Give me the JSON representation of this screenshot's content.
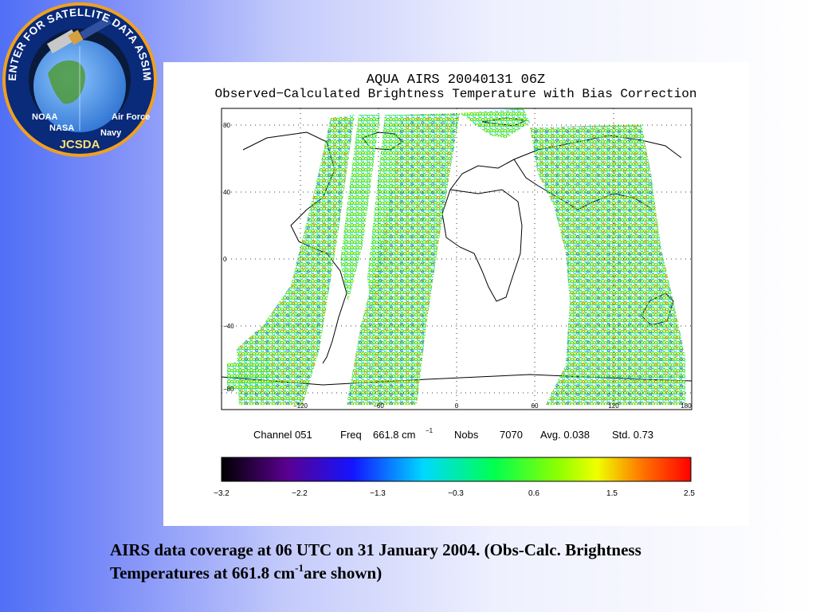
{
  "logo": {
    "ring_text": "JOINT CENTER FOR SATELLITE DATA ASSIMILATION",
    "bottom_text": [
      "NOAA",
      "NASA",
      "JCSDA",
      "Navy",
      "Air Force"
    ]
  },
  "plot": {
    "title_line1": "AQUA AIRS 20040131 06Z",
    "title_line2": "Observed−Calculated Brightness Temperature with Bias Correction",
    "lat_ticks": [
      "80",
      "40",
      "0",
      "−40",
      "−80"
    ],
    "lon_ticks": [
      "−120",
      "−60",
      "0",
      "60",
      "120",
      "180"
    ],
    "info": {
      "channel": "Channel 051",
      "freq_label": "Freq",
      "freq_value": "661.8 cm",
      "freq_exp": "−1",
      "nobs_label": "Nobs",
      "nobs_value": "7070",
      "avg": "Avg. 0.038",
      "std": "Std. 0.73"
    },
    "colorbar": {
      "ticks": [
        "−3.2",
        "−2.2",
        "−1.3",
        "−0.3",
        "0.6",
        "1.5",
        "2.5"
      ],
      "colors": [
        "#000000",
        "#5a0090",
        "#1414ff",
        "#00d8ff",
        "#00ff50",
        "#f0ff00",
        "#ff7000",
        "#ff0000"
      ]
    }
  },
  "caption": {
    "line1": "AIRS data coverage at 06 UTC on 31 January 2004. (Obs-Calc. Brightness",
    "line2_a": "Temperatures at 661.8 cm",
    "line2_exp": "-1",
    "line2_b": "are shown)"
  }
}
